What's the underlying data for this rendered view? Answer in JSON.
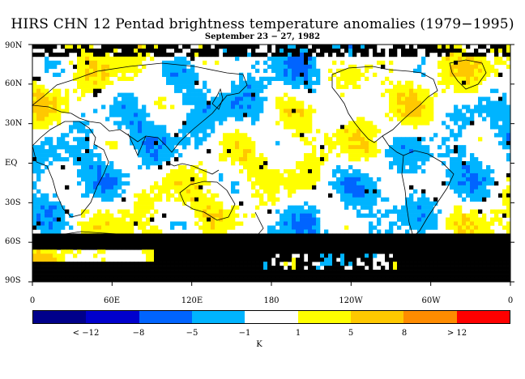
{
  "title": "HIRS CHN 12 Pentad brightness temperature anomalies (1979−1995)",
  "subtitle": "September 23 − 27, 1982",
  "map": {
    "y_labels": [
      "90N",
      "60N",
      "30N",
      "EQ",
      "30S",
      "60S",
      "90S"
    ],
    "x_labels": [
      "0",
      "60E",
      "120E",
      "180",
      "120W",
      "60W",
      "0"
    ],
    "missing_color": "#000000",
    "coast_color": "#000000"
  },
  "colorbar": {
    "colors": [
      "#00008b",
      "#0000cd",
      "#0064ff",
      "#00b4ff",
      "#ffffff",
      "#ffff00",
      "#ffc800",
      "#ff8c00",
      "#ff0000"
    ],
    "labels": [
      "< −12",
      "−8",
      "−5",
      "−1",
      "1",
      "5",
      "8",
      "> 12"
    ],
    "unit": "K"
  }
}
